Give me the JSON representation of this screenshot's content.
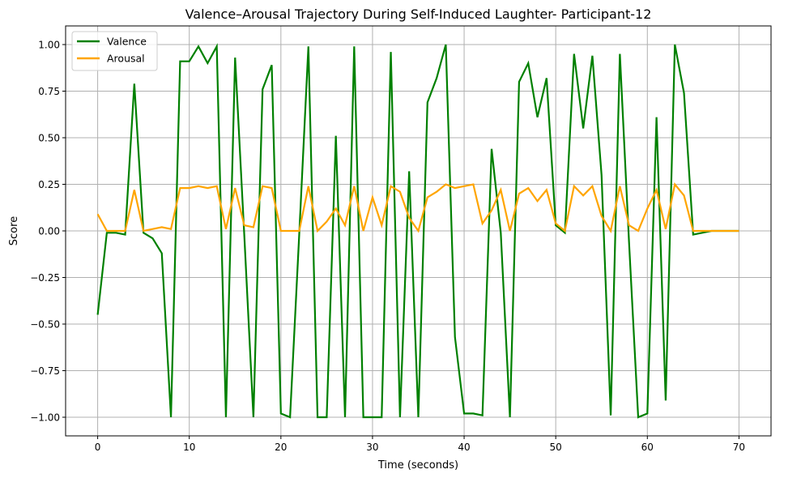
{
  "chart_data": {
    "type": "line",
    "title": "Valence–Arousal Trajectory During Self-Induced Laughter- Participant-12",
    "xlabel": "Time (seconds)",
    "ylabel": "Score",
    "xlim": [
      -3.5,
      73.5
    ],
    "ylim": [
      -1.1,
      1.1
    ],
    "xticks": [
      0,
      10,
      20,
      30,
      40,
      50,
      60,
      70
    ],
    "yticks": [
      1.0,
      0.75,
      0.5,
      0.25,
      0.0,
      -0.25,
      -0.5,
      -0.75,
      -1.0
    ],
    "xtick_labels": [
      "0",
      "10",
      "20",
      "30",
      "40",
      "50",
      "60",
      "70"
    ],
    "ytick_labels": [
      "1.00",
      "0.75",
      "0.50",
      "0.25",
      "0.00",
      "−0.25",
      "−0.50",
      "−0.75",
      "−1.00"
    ],
    "grid": true,
    "legend_position": "top-left",
    "x": [
      0,
      1,
      2,
      3,
      4,
      5,
      6,
      7,
      8,
      9,
      10,
      11,
      12,
      13,
      14,
      15,
      16,
      17,
      18,
      19,
      20,
      21,
      22,
      23,
      24,
      25,
      26,
      27,
      28,
      29,
      30,
      31,
      32,
      33,
      34,
      35,
      36,
      37,
      38,
      39,
      40,
      41,
      42,
      43,
      44,
      45,
      46,
      47,
      48,
      49,
      50,
      51,
      52,
      53,
      54,
      55,
      56,
      57,
      58,
      59,
      60,
      61,
      62,
      63,
      64,
      65,
      66,
      67,
      68,
      69,
      70
    ],
    "series": [
      {
        "name": "Valence",
        "color": "#008000",
        "values": [
          -0.45,
          -0.01,
          -0.01,
          -0.02,
          0.79,
          -0.01,
          -0.04,
          -0.12,
          -1.0,
          0.91,
          0.91,
          0.99,
          0.9,
          0.99,
          -1.0,
          0.93,
          -0.02,
          -1.0,
          0.76,
          0.89,
          -0.98,
          -1.0,
          -0.02,
          0.99,
          -1.0,
          -1.0,
          0.51,
          -1.0,
          0.99,
          -1.0,
          -1.0,
          -1.0,
          0.96,
          -1.0,
          0.32,
          -1.0,
          0.69,
          0.82,
          1.0,
          -0.57,
          -0.98,
          -0.98,
          -0.99,
          0.44,
          -0.01,
          -1.0,
          0.8,
          0.9,
          0.61,
          0.82,
          0.03,
          -0.01,
          0.95,
          0.55,
          0.94,
          0.3,
          -0.99,
          0.95,
          -0.06,
          -1.0,
          -0.98,
          0.61,
          -0.91,
          1.0,
          0.74,
          -0.02,
          -0.01,
          0.0,
          0.0,
          0.0,
          0.0
        ]
      },
      {
        "name": "Arousal",
        "color": "#FFA500",
        "values": [
          0.09,
          0.0,
          0.0,
          0.0,
          0.22,
          0.0,
          0.01,
          0.02,
          0.01,
          0.23,
          0.23,
          0.24,
          0.23,
          0.24,
          0.01,
          0.23,
          0.03,
          0.02,
          0.24,
          0.23,
          0.0,
          0.0,
          0.0,
          0.24,
          0.0,
          0.05,
          0.12,
          0.03,
          0.24,
          0.0,
          0.18,
          0.03,
          0.24,
          0.21,
          0.07,
          0.0,
          0.18,
          0.21,
          0.25,
          0.23,
          0.24,
          0.25,
          0.04,
          0.11,
          0.22,
          0.0,
          0.2,
          0.23,
          0.16,
          0.22,
          0.04,
          0.0,
          0.24,
          0.19,
          0.24,
          0.08,
          0.0,
          0.24,
          0.03,
          0.0,
          0.12,
          0.22,
          0.01,
          0.25,
          0.19,
          0.0,
          0.0,
          0.0,
          0.0,
          0.0,
          0.0
        ]
      }
    ]
  }
}
